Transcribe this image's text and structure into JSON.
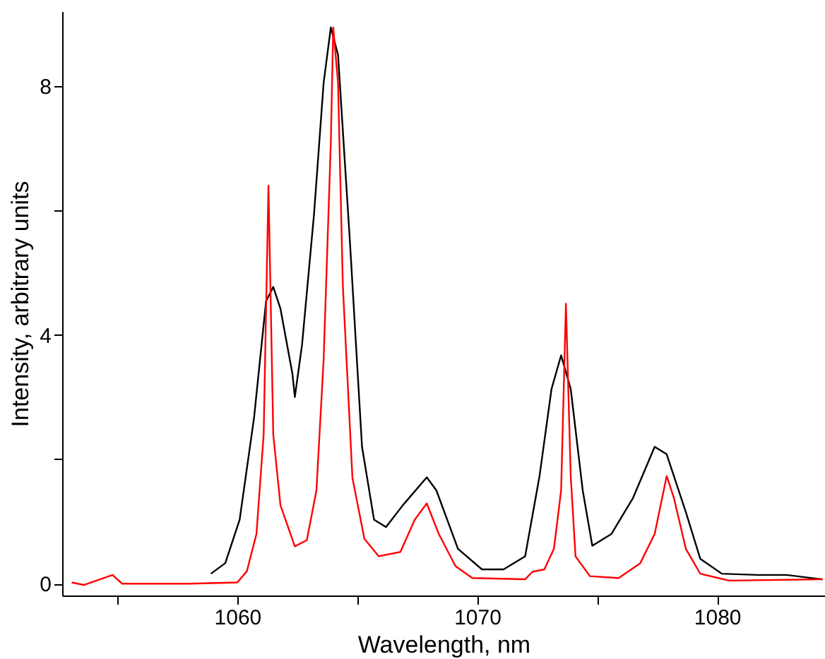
{
  "chart_data": {
    "type": "line",
    "xlabel": "Wavelength, nm",
    "ylabel": "Intensity, arbitrary units",
    "xlim": [
      1052.7,
      1084.5
    ],
    "xticks": [
      {
        "value": 1055,
        "label": null
      },
      1060,
      {
        "value": 1065,
        "label": null
      },
      1070,
      {
        "value": 1075,
        "label": null
      },
      1080
    ],
    "ylim": [
      -0.19,
      9.2
    ],
    "yticks": [
      0,
      {
        "value": 2,
        "label": null
      },
      4,
      {
        "value": 6,
        "label": null
      },
      8
    ],
    "grid": false,
    "line_style": "solid",
    "marker": "none",
    "series": [
      {
        "color": "#000000",
        "x": [
          1058.9,
          1059.5,
          1060.1,
          1060.7,
          1061.2,
          1061.5,
          1061.8,
          1062.3,
          1062.4,
          1062.7,
          1063.2,
          1063.6,
          1063.9,
          1064.2,
          1064.7,
          1065.2,
          1065.7,
          1066.2,
          1066.9,
          1067.9,
          1068.3,
          1069.2,
          1070.2,
          1071.1,
          1072,
          1072.6,
          1073.1,
          1073.5,
          1073.9,
          1074.4,
          1074.8,
          1075.6,
          1076.5,
          1077.4,
          1077.9,
          1078.7,
          1079.3,
          1080.2,
          1081.7,
          1082.9,
          1084.4
        ],
        "values": [
          0.16,
          0.33,
          1.03,
          2.67,
          4.54,
          4.77,
          4.42,
          3.37,
          3.0,
          3.84,
          5.94,
          8.05,
          8.94,
          8.5,
          5.47,
          2.2,
          1.03,
          0.91,
          1.26,
          1.71,
          1.5,
          0.56,
          0.23,
          0.23,
          0.44,
          1.73,
          3.13,
          3.67,
          3.13,
          1.5,
          0.61,
          0.8,
          1.38,
          2.2,
          2.08,
          1.15,
          0.4,
          0.16,
          0.14,
          0.14,
          0.07
        ]
      },
      {
        "color": "#ff0000",
        "x": [
          1053.1,
          1053.6,
          1054.8,
          1055.2,
          1058,
          1060,
          1060.4,
          1060.8,
          1061.1,
          1061.3,
          1061.5,
          1061.8,
          1062.4,
          1062.9,
          1063.3,
          1063.6,
          1063.9,
          1064.0,
          1064.2,
          1064.4,
          1064.8,
          1065.3,
          1065.9,
          1066.8,
          1067.4,
          1067.9,
          1068.4,
          1069.1,
          1069.8,
          1072,
          1072.3,
          1072.8,
          1073.2,
          1073.5,
          1073.7,
          1073.9,
          1074.1,
          1074.7,
          1075.9,
          1076.8,
          1077.4,
          1077.9,
          1078.2,
          1078.7,
          1079.3,
          1080.5,
          1084.4
        ],
        "values": [
          0.02,
          -0.02,
          0.14,
          0,
          0,
          0.02,
          0.2,
          0.8,
          2.4,
          6.4,
          2.4,
          1.26,
          0.6,
          0.7,
          1.5,
          3.6,
          7.1,
          8.94,
          8.05,
          4.8,
          1.7,
          0.72,
          0.44,
          0.51,
          1.03,
          1.29,
          0.8,
          0.28,
          0.09,
          0.07,
          0.19,
          0.23,
          0.56,
          1.5,
          4.5,
          1.73,
          0.44,
          0.12,
          0.09,
          0.33,
          0.8,
          1.73,
          1.38,
          0.56,
          0.16,
          0.05,
          0.07
        ]
      }
    ]
  }
}
